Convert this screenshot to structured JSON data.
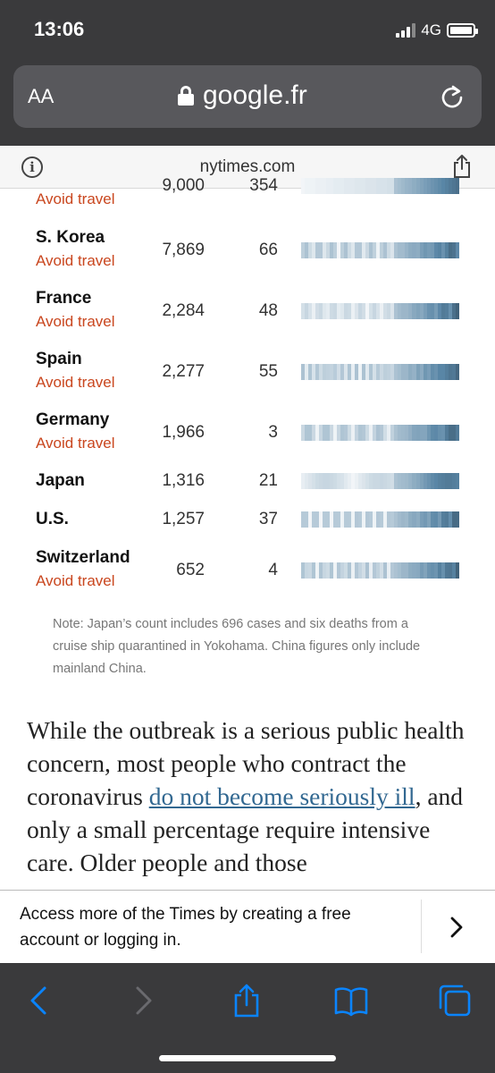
{
  "status": {
    "time": "13:06",
    "network": "4G"
  },
  "browser": {
    "text_size_label": "AA",
    "url": "google.fr",
    "site": "nytimes.com"
  },
  "table": {
    "rows": [
      {
        "country": "",
        "advisory": "Avoid travel",
        "cases": "9,000",
        "deaths": "354"
      },
      {
        "country": "S. Korea",
        "advisory": "Avoid travel",
        "cases": "7,869",
        "deaths": "66"
      },
      {
        "country": "France",
        "advisory": "Avoid travel",
        "cases": "2,284",
        "deaths": "48"
      },
      {
        "country": "Spain",
        "advisory": "Avoid travel",
        "cases": "2,277",
        "deaths": "55"
      },
      {
        "country": "Germany",
        "advisory": "Avoid travel",
        "cases": "1,966",
        "deaths": "3"
      },
      {
        "country": "Japan",
        "advisory": "",
        "cases": "1,316",
        "deaths": "21"
      },
      {
        "country": "U.S.",
        "advisory": "",
        "cases": "1,257",
        "deaths": "37"
      },
      {
        "country": "Switzerland",
        "advisory": "Avoid travel",
        "cases": "652",
        "deaths": "4"
      }
    ],
    "note": "Note: Japan’s count includes 696 cases and six deaths from a cruise ship quarantined in Yokohama. China figures only include mainland China."
  },
  "article": {
    "text_before": "While the outbreak is a serious public health concern, most people who contract the coronavirus ",
    "link_text": "do not become seriously ill",
    "text_after": ", and only a small percentage require intensive care. Older people and those"
  },
  "access_bar": {
    "text": "Access more of the Times by creating a free account or logging in."
  },
  "colors": {
    "chrome": "#3a3a3c",
    "advisory": "#c9461e",
    "link": "#326891",
    "ios_blue": "#0a84ff"
  }
}
